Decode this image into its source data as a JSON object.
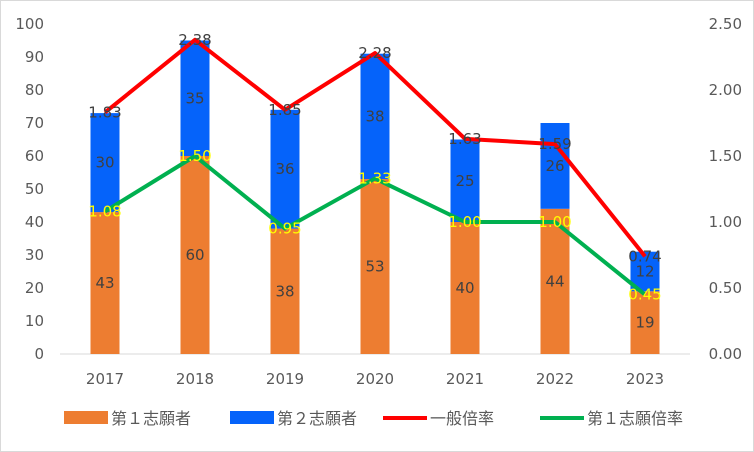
{
  "chart_data": {
    "type": "bar",
    "stacked": true,
    "categories": [
      "2017",
      "2018",
      "2019",
      "2020",
      "2021",
      "2022",
      "2023"
    ],
    "series": [
      {
        "name": "第１志願者",
        "type": "bar",
        "axis": "left",
        "color": "#ed7d31",
        "values": [
          43,
          60,
          38,
          53,
          40,
          44,
          19
        ]
      },
      {
        "name": "第２志願者",
        "type": "bar",
        "axis": "left",
        "color": "#0563fa",
        "values": [
          30,
          35,
          36,
          38,
          25,
          26,
          12
        ]
      },
      {
        "name": "一般倍率",
        "type": "line",
        "axis": "right",
        "color": "#ff0000",
        "values": [
          1.83,
          2.38,
          1.85,
          2.28,
          1.63,
          1.59,
          0.74
        ],
        "labels": [
          "1.83",
          "2.38",
          "1.85",
          "2.28",
          "1.63",
          "1.59",
          "0.74"
        ]
      },
      {
        "name": "第１志願倍率",
        "type": "line",
        "axis": "right",
        "color": "#00b050",
        "values": [
          1.08,
          1.5,
          0.95,
          1.33,
          1.0,
          1.0,
          0.45
        ],
        "labels": [
          "1.08",
          "1.50",
          "0.95",
          "1.33",
          "1.00",
          "1.00",
          "0.45"
        ]
      }
    ],
    "ylim": [
      0,
      100
    ],
    "y_ticks": [
      "0",
      "10",
      "20",
      "30",
      "40",
      "50",
      "60",
      "70",
      "80",
      "90",
      "100"
    ],
    "y2lim": [
      0,
      2.5
    ],
    "y2_ticks": [
      "0.00",
      "0.50",
      "1.00",
      "1.50",
      "2.00",
      "2.50"
    ],
    "grid": false,
    "legend_position": "bottom"
  }
}
